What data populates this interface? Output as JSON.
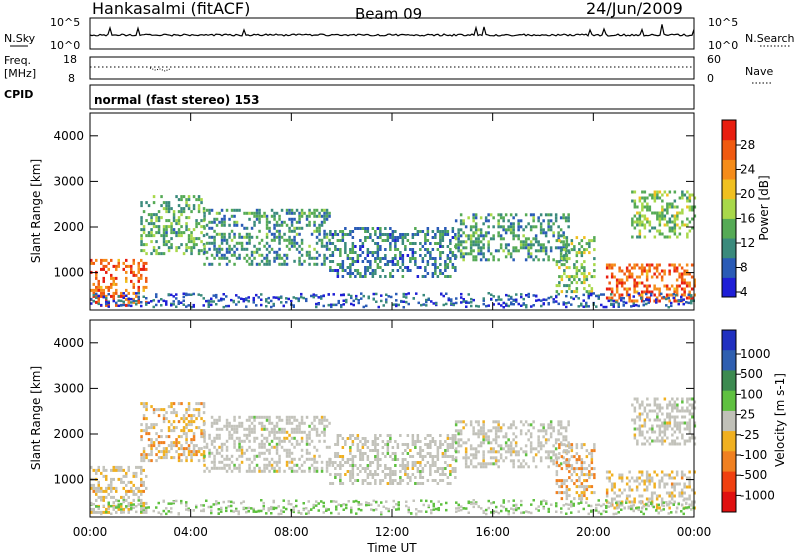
{
  "header": {
    "station": "Hankasalmi (fitACF)",
    "beam": "Beam 09",
    "date": "24/Jun/2009"
  },
  "strips": {
    "nsky_label": "N.Sky",
    "nsky_ticks": [
      "10^5",
      "10^0"
    ],
    "nsearch_label": "N.Search",
    "nsearch_ticks": [
      "10^5",
      "10^0"
    ],
    "freq_label_1": "Freq.",
    "freq_label_2": "[MHz]",
    "freq_ticks": [
      "18",
      "8"
    ],
    "nave_label": "Nave",
    "nave_ticks": [
      "60",
      "0"
    ],
    "cpid_label": "CPID",
    "cpid_text": "normal (fast stereo) 153"
  },
  "axes": {
    "ylabel": "Slant Range [km]",
    "yticks": [
      "4000",
      "3000",
      "2000",
      "1000"
    ],
    "xticks": [
      "00:00",
      "04:00",
      "08:00",
      "12:00",
      "16:00",
      "20:00",
      "00:00"
    ],
    "xlabel": "Time UT"
  },
  "colors": {
    "power_scale": [
      "#1f1fd6",
      "#2a5bb6",
      "#3a8a7c",
      "#55aa55",
      "#a8d84a",
      "#f0c020",
      "#f58c1a",
      "#f05a10",
      "#e81e10"
    ],
    "velocity_scale": [
      "#2030c0",
      "#2f5fb0",
      "#3c8a50",
      "#5fc040",
      "#c0c0b8",
      "#f0b020",
      "#f08020",
      "#f04010",
      "#e01010"
    ],
    "ground_scatter": "#c4c4bc"
  },
  "chart_data": [
    {
      "type": "heatmap",
      "name": "Power",
      "colorbar_label": "Power [dB]",
      "colorbar_ticks": [
        "28",
        "24",
        "20",
        "16",
        "12",
        "8",
        "4"
      ],
      "x_range_hours": [
        0,
        24
      ],
      "y_range_km": [
        180,
        4500
      ],
      "c_range": [
        0,
        32
      ],
      "regions": [
        {
          "t0": 0.0,
          "t1": 2.2,
          "r0": 300,
          "r1": 1300,
          "level": 26
        },
        {
          "t0": 2.0,
          "t1": 4.5,
          "r0": 1400,
          "r1": 2700,
          "level": 12
        },
        {
          "t0": 4.5,
          "t1": 9.5,
          "r0": 1200,
          "r1": 2400,
          "level": 10
        },
        {
          "t0": 9.5,
          "t1": 14.5,
          "r0": 900,
          "r1": 2000,
          "level": 8
        },
        {
          "t0": 14.5,
          "t1": 19.0,
          "r0": 1300,
          "r1": 2300,
          "level": 10
        },
        {
          "t0": 18.5,
          "t1": 20.0,
          "r0": 600,
          "r1": 1800,
          "level": 14
        },
        {
          "t0": 20.5,
          "t1": 24.0,
          "r0": 400,
          "r1": 1200,
          "level": 26
        },
        {
          "t0": 21.5,
          "t1": 24.0,
          "r0": 1800,
          "r1": 2800,
          "level": 14
        }
      ]
    },
    {
      "type": "heatmap",
      "name": "Velocity",
      "colorbar_label": "Velocity [m s-1]",
      "colorbar_ticks": [
        "1000",
        "500",
        "100",
        "25",
        "-25",
        "-100",
        "-500",
        "-1000"
      ],
      "x_range_hours": [
        0,
        24
      ],
      "y_range_km": [
        180,
        4500
      ],
      "c_range": [
        -1000,
        1000
      ],
      "regions": [
        {
          "t0": 0.0,
          "t1": 2.2,
          "r0": 300,
          "r1": 1300,
          "level": -200
        },
        {
          "t0": 2.0,
          "t1": 4.5,
          "r0": 1400,
          "r1": 2700,
          "level": -300
        },
        {
          "t0": 4.5,
          "t1": 9.5,
          "r0": 1200,
          "r1": 2400,
          "level": 0
        },
        {
          "t0": 9.5,
          "t1": 14.5,
          "r0": 900,
          "r1": 2000,
          "level": 0
        },
        {
          "t0": 14.5,
          "t1": 19.0,
          "r0": 1300,
          "r1": 2300,
          "level": 0
        },
        {
          "t0": 18.5,
          "t1": 20.0,
          "r0": 600,
          "r1": 1800,
          "level": -400
        },
        {
          "t0": 20.5,
          "t1": 24.0,
          "r0": 400,
          "r1": 1200,
          "level": -200
        },
        {
          "t0": 21.5,
          "t1": 24.0,
          "r0": 1800,
          "r1": 2800,
          "level": 0
        }
      ]
    }
  ]
}
